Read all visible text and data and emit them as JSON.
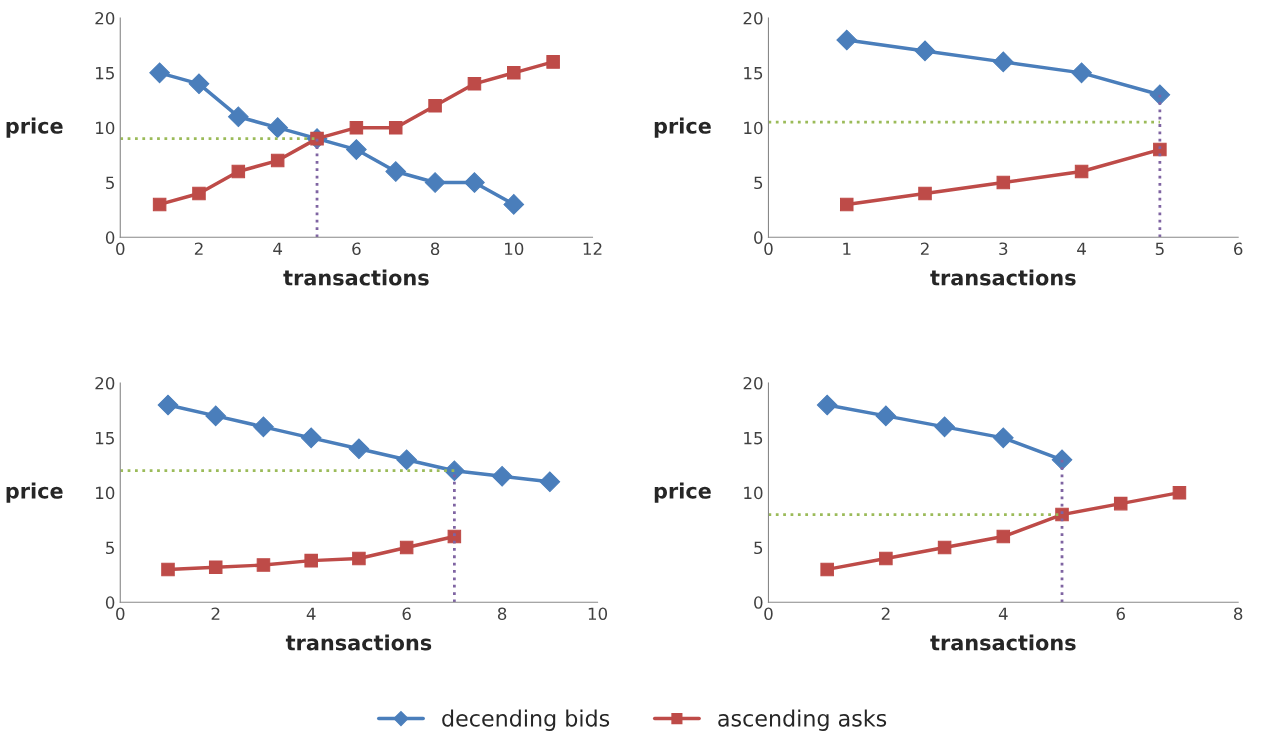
{
  "chart_data": [
    {
      "type": "line",
      "xlabel": "transactions",
      "ylabel": "price",
      "xlim": [
        0,
        12
      ],
      "xticks": [
        0,
        2,
        4,
        6,
        8,
        10,
        12
      ],
      "ylim": [
        0,
        20
      ],
      "yticks": [
        0,
        5,
        10,
        15,
        20
      ],
      "grid": false,
      "legend": "bottom",
      "series": [
        {
          "name": "decending bids",
          "color": "#4a7ebb",
          "marker": "diamond",
          "x": [
            1,
            2,
            3,
            4,
            5,
            6,
            7,
            8,
            9,
            10
          ],
          "values": [
            15,
            14,
            11,
            10,
            9,
            8,
            6,
            5,
            5,
            3
          ]
        },
        {
          "name": "ascending asks",
          "color": "#be4b48",
          "marker": "square",
          "x": [
            1,
            2,
            3,
            4,
            5,
            6,
            7,
            8,
            9,
            10,
            11
          ],
          "values": [
            3,
            4,
            6,
            7,
            9,
            10,
            10,
            12,
            14,
            15,
            16
          ]
        },
        {
          "color": "#9bbb59",
          "marker": "none",
          "line_style": "dotted",
          "x": [
            0,
            5
          ],
          "values": [
            9,
            9
          ]
        },
        {
          "color": "#7f64a2",
          "marker": "none",
          "line_style": "dotted",
          "x": [
            5,
            5
          ],
          "values": [
            0,
            9
          ]
        }
      ]
    },
    {
      "type": "line",
      "xlabel": "transactions",
      "ylabel": "price",
      "xlim": [
        0,
        6
      ],
      "xticks": [
        0,
        1,
        2,
        3,
        4,
        5,
        6
      ],
      "ylim": [
        0,
        20
      ],
      "yticks": [
        0,
        5,
        10,
        15,
        20
      ],
      "grid": false,
      "legend": "bottom",
      "series": [
        {
          "name": "decending bids",
          "color": "#4a7ebb",
          "marker": "diamond",
          "x": [
            1,
            2,
            3,
            4,
            5
          ],
          "values": [
            18,
            17,
            16,
            15,
            13
          ]
        },
        {
          "name": "ascending asks",
          "color": "#be4b48",
          "marker": "square",
          "x": [
            1,
            2,
            3,
            4,
            5
          ],
          "values": [
            3,
            4,
            5,
            6,
            8
          ]
        },
        {
          "color": "#9bbb59",
          "marker": "none",
          "line_style": "dotted",
          "x": [
            0,
            5
          ],
          "values": [
            10.5,
            10.5
          ]
        },
        {
          "color": "#7f64a2",
          "marker": "none",
          "line_style": "dotted",
          "x": [
            5,
            5
          ],
          "values": [
            0,
            13
          ]
        }
      ]
    },
    {
      "type": "line",
      "xlabel": "transactions",
      "ylabel": "price",
      "xlim": [
        0,
        10
      ],
      "xticks": [
        0,
        2,
        4,
        6,
        8,
        10
      ],
      "ylim": [
        0,
        20
      ],
      "yticks": [
        0,
        5,
        10,
        15,
        20
      ],
      "grid": false,
      "legend": "bottom",
      "series": [
        {
          "name": "decending bids",
          "color": "#4a7ebb",
          "marker": "diamond",
          "x": [
            1,
            2,
            3,
            4,
            5,
            6,
            7,
            8,
            9
          ],
          "values": [
            18,
            17,
            16,
            15,
            14,
            13,
            12,
            11.5,
            11
          ]
        },
        {
          "name": "ascending asks",
          "color": "#be4b48",
          "marker": "square",
          "x": [
            1,
            2,
            3,
            4,
            5,
            6,
            7
          ],
          "values": [
            3,
            3.2,
            3.4,
            3.8,
            4,
            5,
            6
          ]
        },
        {
          "color": "#9bbb59",
          "marker": "none",
          "line_style": "dotted",
          "x": [
            0,
            7
          ],
          "values": [
            12,
            12
          ]
        },
        {
          "color": "#7f64a2",
          "marker": "none",
          "line_style": "dotted",
          "x": [
            7,
            7
          ],
          "values": [
            0,
            12
          ]
        }
      ]
    },
    {
      "type": "line",
      "xlabel": "transactions",
      "ylabel": "price",
      "xlim": [
        0,
        8
      ],
      "xticks": [
        0,
        2,
        4,
        6,
        8
      ],
      "ylim": [
        0,
        20
      ],
      "yticks": [
        0,
        5,
        10,
        15,
        20
      ],
      "grid": false,
      "legend": "bottom",
      "series": [
        {
          "name": "decending bids",
          "color": "#4a7ebb",
          "marker": "diamond",
          "x": [
            1,
            2,
            3,
            4,
            5
          ],
          "values": [
            18,
            17,
            16,
            15,
            13
          ]
        },
        {
          "name": "ascending asks",
          "color": "#be4b48",
          "marker": "square",
          "x": [
            1,
            2,
            3,
            4,
            5,
            6,
            7
          ],
          "values": [
            3,
            4,
            5,
            6,
            8,
            9,
            10
          ]
        },
        {
          "color": "#9bbb59",
          "marker": "none",
          "line_style": "dotted",
          "x": [
            0,
            5
          ],
          "values": [
            8,
            8
          ]
        },
        {
          "color": "#7f64a2",
          "marker": "none",
          "line_style": "dotted",
          "x": [
            5,
            5
          ],
          "values": [
            0,
            13
          ]
        }
      ]
    }
  ]
}
